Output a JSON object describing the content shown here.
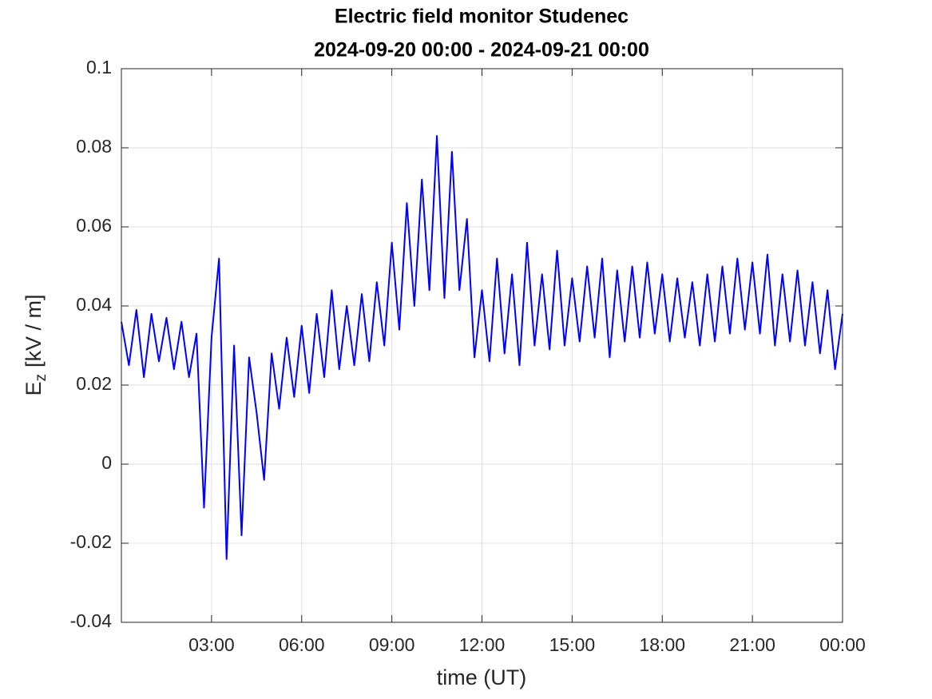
{
  "chart_data": {
    "type": "line",
    "title": [
      "Electric field monitor Studenec",
      "2024-09-20 00:00 - 2024-09-21 00:00"
    ],
    "xlabel": "time (UT)",
    "ylabel": {
      "main": "E",
      "subscript": "z",
      "unit": "[kV / m]"
    },
    "x": [
      0,
      0.25,
      0.5,
      0.75,
      1,
      1.25,
      1.5,
      1.75,
      2,
      2.25,
      2.5,
      2.75,
      3,
      3.25,
      3.5,
      3.75,
      4,
      4.25,
      4.5,
      4.75,
      5,
      5.25,
      5.5,
      5.75,
      6,
      6.25,
      6.5,
      6.75,
      7,
      7.25,
      7.5,
      7.75,
      8,
      8.25,
      8.5,
      8.75,
      9,
      9.25,
      9.5,
      9.75,
      10,
      10.25,
      10.5,
      10.75,
      11,
      11.25,
      11.5,
      11.75,
      12,
      12.25,
      12.5,
      12.75,
      13,
      13.25,
      13.5,
      13.75,
      14,
      14.25,
      14.5,
      14.75,
      15,
      15.25,
      15.5,
      15.75,
      16,
      16.25,
      16.5,
      16.75,
      17,
      17.25,
      17.5,
      17.75,
      18,
      18.25,
      18.5,
      18.75,
      19,
      19.25,
      19.5,
      19.75,
      20,
      20.25,
      20.5,
      20.75,
      21,
      21.25,
      21.5,
      21.75,
      22,
      22.25,
      22.5,
      22.75,
      23,
      23.25,
      23.5,
      23.75,
      24
    ],
    "values": [
      0.036,
      0.025,
      0.039,
      0.022,
      0.038,
      0.026,
      0.037,
      0.024,
      0.036,
      0.022,
      0.033,
      -0.011,
      0.032,
      0.052,
      -0.024,
      0.03,
      -0.018,
      0.027,
      0.013,
      -0.004,
      0.028,
      0.014,
      0.032,
      0.017,
      0.035,
      0.018,
      0.038,
      0.022,
      0.044,
      0.024,
      0.04,
      0.025,
      0.043,
      0.026,
      0.046,
      0.03,
      0.056,
      0.034,
      0.066,
      0.04,
      0.072,
      0.044,
      0.083,
      0.042,
      0.079,
      0.044,
      0.062,
      0.027,
      0.044,
      0.026,
      0.052,
      0.028,
      0.048,
      0.025,
      0.056,
      0.03,
      0.048,
      0.029,
      0.054,
      0.03,
      0.047,
      0.031,
      0.05,
      0.032,
      0.052,
      0.027,
      0.049,
      0.031,
      0.05,
      0.032,
      0.051,
      0.033,
      0.048,
      0.031,
      0.047,
      0.032,
      0.046,
      0.03,
      0.048,
      0.031,
      0.05,
      0.033,
      0.052,
      0.034,
      0.051,
      0.033,
      0.053,
      0.03,
      0.048,
      0.031,
      0.049,
      0.03,
      0.046,
      0.028,
      0.044,
      0.024,
      0.038
    ],
    "color": "#0000ff",
    "xlim": [
      0,
      24
    ],
    "xticks": [
      {
        "value": 3,
        "label": "03:00"
      },
      {
        "value": 6,
        "label": "06:00"
      },
      {
        "value": 9,
        "label": "09:00"
      },
      {
        "value": 12,
        "label": "12:00"
      },
      {
        "value": 15,
        "label": "15:00"
      },
      {
        "value": 18,
        "label": "18:00"
      },
      {
        "value": 21,
        "label": "21:00"
      },
      {
        "value": 24,
        "label": "00:00"
      }
    ],
    "ylim": [
      -0.04,
      0.1
    ],
    "yticks": [
      -0.04,
      -0.02,
      0,
      0.02,
      0.04,
      0.06,
      0.08,
      0.1
    ],
    "grid": true
  }
}
